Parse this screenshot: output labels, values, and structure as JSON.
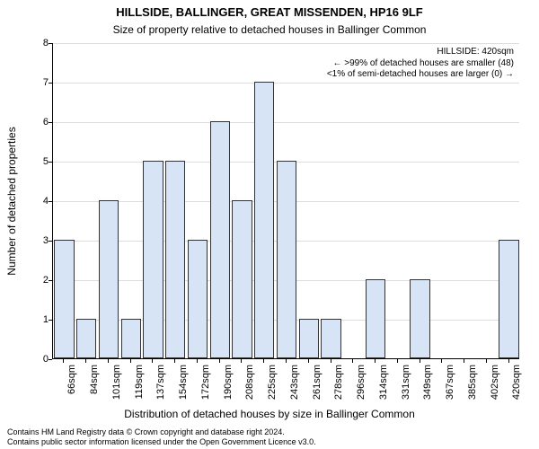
{
  "title_line1": "HILLSIDE, BALLINGER, GREAT MISSENDEN, HP16 9LF",
  "title_line2": "Size of property relative to detached houses in Ballinger Common",
  "ylabel": "Number of detached properties",
  "xlabel": "Distribution of detached houses by size in Ballinger Common",
  "footer_line1": "Contains HM Land Registry data © Crown copyright and database right 2024.",
  "footer_line2": "Contains public sector information licensed under the Open Government Licence v3.0.",
  "annot_line1": "HILLSIDE: 420sqm",
  "annot_line2": "← >99% of detached houses are smaller (48)",
  "annot_line3": "<1% of semi-detached houses are larger (0) →",
  "chart": {
    "type": "bar",
    "ylim": [
      0,
      8
    ],
    "ytick_step": 1,
    "bar_color": "#d6e4f5",
    "bar_border_color": "#333333",
    "grid_color": "#dddddd",
    "background_color": "#ffffff",
    "title_fontsize": 13,
    "subtitle_fontsize": 12,
    "axis_label_fontsize": 12,
    "tick_fontsize": 11,
    "annot_fontsize": 10,
    "footer_fontsize": 9,
    "bar_width_ratio": 0.9,
    "categories": [
      "66sqm",
      "84sqm",
      "101sqm",
      "119sqm",
      "137sqm",
      "154sqm",
      "172sqm",
      "190sqm",
      "208sqm",
      "225sqm",
      "243sqm",
      "261sqm",
      "278sqm",
      "296sqm",
      "314sqm",
      "331sqm",
      "349sqm",
      "367sqm",
      "385sqm",
      "402sqm",
      "420sqm"
    ],
    "values": [
      3,
      1,
      4,
      1,
      5,
      5,
      3,
      6,
      4,
      7,
      5,
      1,
      1,
      0,
      2,
      0,
      2,
      0,
      0,
      0,
      3
    ]
  }
}
